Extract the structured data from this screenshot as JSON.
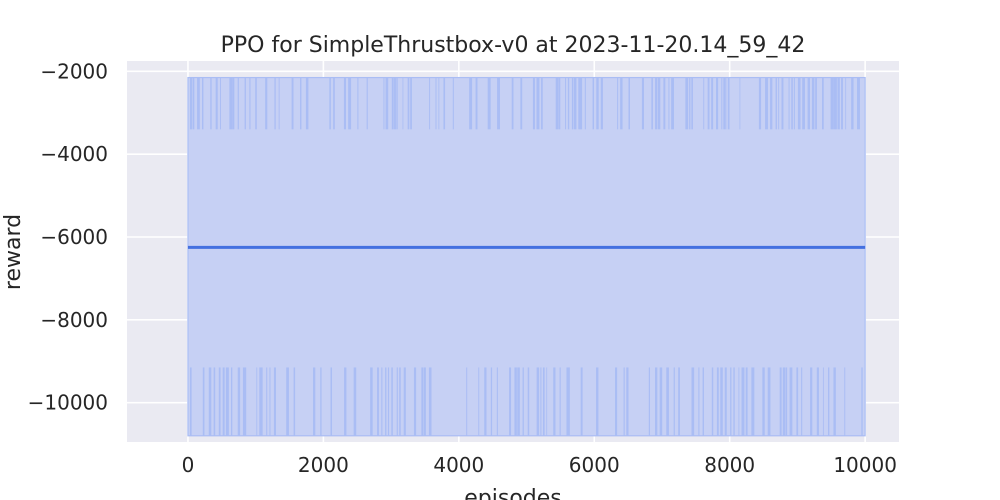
{
  "chart_data": {
    "type": "line",
    "title": "PPO for SimpleThrustbox-v0 at 2023-11-20.14_59_42",
    "xlabel": "episodes",
    "ylabel": "reward",
    "xlim": [
      -900,
      10500
    ],
    "ylim": [
      -10950,
      -1750
    ],
    "xticks": [
      0,
      2000,
      4000,
      6000,
      8000,
      10000
    ],
    "yticks": [
      -2000,
      -4000,
      -6000,
      -8000,
      -10000
    ],
    "xtick_labels": [
      "0",
      "2000",
      "4000",
      "6000",
      "8000",
      "10000"
    ],
    "ytick_labels": [
      "−2000",
      "−4000",
      "−6000",
      "−8000",
      "−10000"
    ],
    "grid": true,
    "legend": "none",
    "series": [
      {
        "x": [
          0,
          10000
        ],
        "values": [
          -6250,
          -6250
        ],
        "band": {
          "outer_lower": -10800,
          "outer_upper": -2150,
          "spike_upper_low": -3400,
          "spike_lower_high": -9150
        }
      }
    ],
    "colors": {
      "background": "#eaeaf2",
      "grid": "#ffffff",
      "line": "#4470e0",
      "band": "#c6d0f4",
      "spikes": "#aabdf4"
    }
  }
}
